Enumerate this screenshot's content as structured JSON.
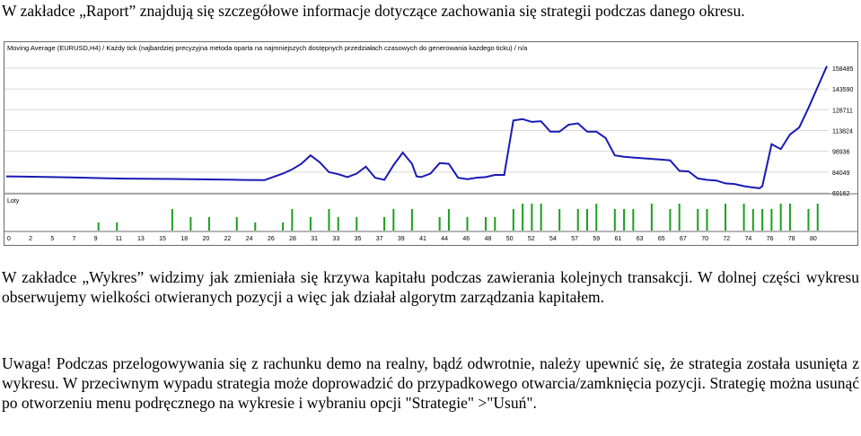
{
  "paragraphs": {
    "p1": "W zakładce „Raport” znajdują się szczegółowe informacje dotyczące zachowania się strategii podczas danego okresu.",
    "p2": "W zakładce „Wykres” widzimy jak zmieniała się krzywa kapitału podczas zawierania kolejnych transakcji. W dolnej części wykresu obserwujemy wielkości otwieranych pozycji a więc jak działał algorytm zarządzania kapitałem.",
    "p3": "Uwaga! Podczas przelogowywania się z rachunku demo na realny, bądź odwrotnie, należy upewnić się, że strategia została usunięta z wykresu. W przeciwnym wypadu strategia może doprowadzić do przypadkowego otwarcia/zamknięcia pozycji. Strategię można usunąć po otworzeniu menu podręcznego na wykresie i wybraniu opcji \"Strategie\" >\"Usuń\"."
  },
  "chart_data": {
    "type": "line",
    "title": "Moving Average (EURUSD,H4) / Każdy tick (najbardziej precyzyjna metoda oparta na najmniejszych dostępnych przedziałach czasowych do generowania każdego ticku) / n/a",
    "lots_label": "Loty",
    "ylim": [
      69162,
      163000
    ],
    "yticks": [
      "158485",
      "143590",
      "128711",
      "113824",
      "98936",
      "84049",
      "69162"
    ],
    "xticks": [
      "0",
      "2",
      "5",
      "7",
      "9",
      "11",
      "13",
      "15",
      "18",
      "20",
      "22",
      "24",
      "26",
      "28",
      "31",
      "33",
      "35",
      "37",
      "39",
      "41",
      "44",
      "46",
      "48",
      "50",
      "52",
      "54",
      "57",
      "59",
      "61",
      "63",
      "65",
      "67",
      "70",
      "72",
      "74",
      "76",
      "78",
      "80"
    ],
    "equity": [
      [
        0,
        81000
      ],
      [
        2,
        80800
      ],
      [
        5,
        80500
      ],
      [
        7,
        80200
      ],
      [
        9,
        79900
      ],
      [
        11,
        79600
      ],
      [
        13,
        79400
      ],
      [
        15,
        79300
      ],
      [
        18,
        79100
      ],
      [
        20,
        79000
      ],
      [
        22,
        78800
      ],
      [
        24,
        78600
      ],
      [
        26,
        78400
      ],
      [
        28,
        78300
      ],
      [
        30,
        83000
      ],
      [
        31,
        86000
      ],
      [
        32,
        90000
      ],
      [
        33,
        96000
      ],
      [
        34,
        91000
      ],
      [
        35,
        84000
      ],
      [
        36,
        82500
      ],
      [
        37,
        80500
      ],
      [
        38,
        83000
      ],
      [
        39,
        88000
      ],
      [
        40,
        80000
      ],
      [
        41,
        78500
      ],
      [
        42,
        89000
      ],
      [
        43,
        98000
      ],
      [
        44,
        90000
      ],
      [
        44.5,
        81000
      ],
      [
        45,
        80500
      ],
      [
        46,
        83000
      ],
      [
        47,
        90500
      ],
      [
        48,
        90000
      ],
      [
        49,
        80000
      ],
      [
        50,
        79000
      ],
      [
        51,
        80000
      ],
      [
        52,
        80500
      ],
      [
        53,
        82000
      ],
      [
        54,
        82000
      ],
      [
        55,
        121000
      ],
      [
        56,
        122000
      ],
      [
        57,
        120000
      ],
      [
        58,
        120500
      ],
      [
        59,
        113000
      ],
      [
        60,
        113000
      ],
      [
        61,
        118000
      ],
      [
        62,
        119000
      ],
      [
        63,
        113000
      ],
      [
        64,
        113000
      ],
      [
        65,
        108500
      ],
      [
        66,
        96000
      ],
      [
        67,
        95000
      ],
      [
        68,
        94500
      ],
      [
        69,
        94000
      ],
      [
        70,
        93500
      ],
      [
        71,
        93000
      ],
      [
        72,
        92500
      ],
      [
        73,
        85000
      ],
      [
        74,
        84500
      ],
      [
        75,
        79500
      ],
      [
        76,
        78500
      ],
      [
        77,
        78000
      ],
      [
        78,
        76000
      ],
      [
        79,
        75500
      ],
      [
        80,
        74000
      ],
      [
        81,
        73000
      ],
      [
        81.7,
        72500
      ],
      [
        82,
        74000
      ],
      [
        83,
        104000
      ],
      [
        84,
        100500
      ],
      [
        85,
        111000
      ],
      [
        86,
        116000
      ],
      [
        87,
        130000
      ],
      [
        88,
        145000
      ],
      [
        89,
        160000
      ]
    ],
    "lots": [
      [
        10,
        0.3
      ],
      [
        12,
        0.3
      ],
      [
        18,
        0.8
      ],
      [
        20,
        0.5
      ],
      [
        22,
        0.5
      ],
      [
        25,
        0.5
      ],
      [
        27,
        0.3
      ],
      [
        30,
        0.3
      ],
      [
        31,
        0.8
      ],
      [
        33,
        0.5
      ],
      [
        35,
        0.8
      ],
      [
        36,
        0.5
      ],
      [
        38,
        0.5
      ],
      [
        41,
        0.5
      ],
      [
        42,
        0.8
      ],
      [
        44,
        0.8
      ],
      [
        47,
        0.5
      ],
      [
        48,
        0.8
      ],
      [
        50,
        0.5
      ],
      [
        52,
        0.5
      ],
      [
        53,
        0.5
      ],
      [
        55,
        0.8
      ],
      [
        56,
        1.0
      ],
      [
        57,
        1.0
      ],
      [
        58,
        1.0
      ],
      [
        60,
        0.8
      ],
      [
        62,
        0.8
      ],
      [
        63,
        0.8
      ],
      [
        64,
        1.0
      ],
      [
        66,
        0.8
      ],
      [
        67,
        0.8
      ],
      [
        68,
        0.8
      ],
      [
        70,
        1.0
      ],
      [
        72,
        0.8
      ],
      [
        73,
        1.0
      ],
      [
        75,
        0.8
      ],
      [
        76,
        0.8
      ],
      [
        78,
        1.0
      ],
      [
        80,
        1.0
      ],
      [
        81,
        0.8
      ],
      [
        82,
        0.8
      ],
      [
        83,
        0.8
      ],
      [
        84,
        1.0
      ],
      [
        85,
        1.0
      ],
      [
        87,
        0.8
      ],
      [
        88,
        1.0
      ]
    ],
    "line_color": "#1a1ab4",
    "lot_color": "#1aa01a"
  }
}
